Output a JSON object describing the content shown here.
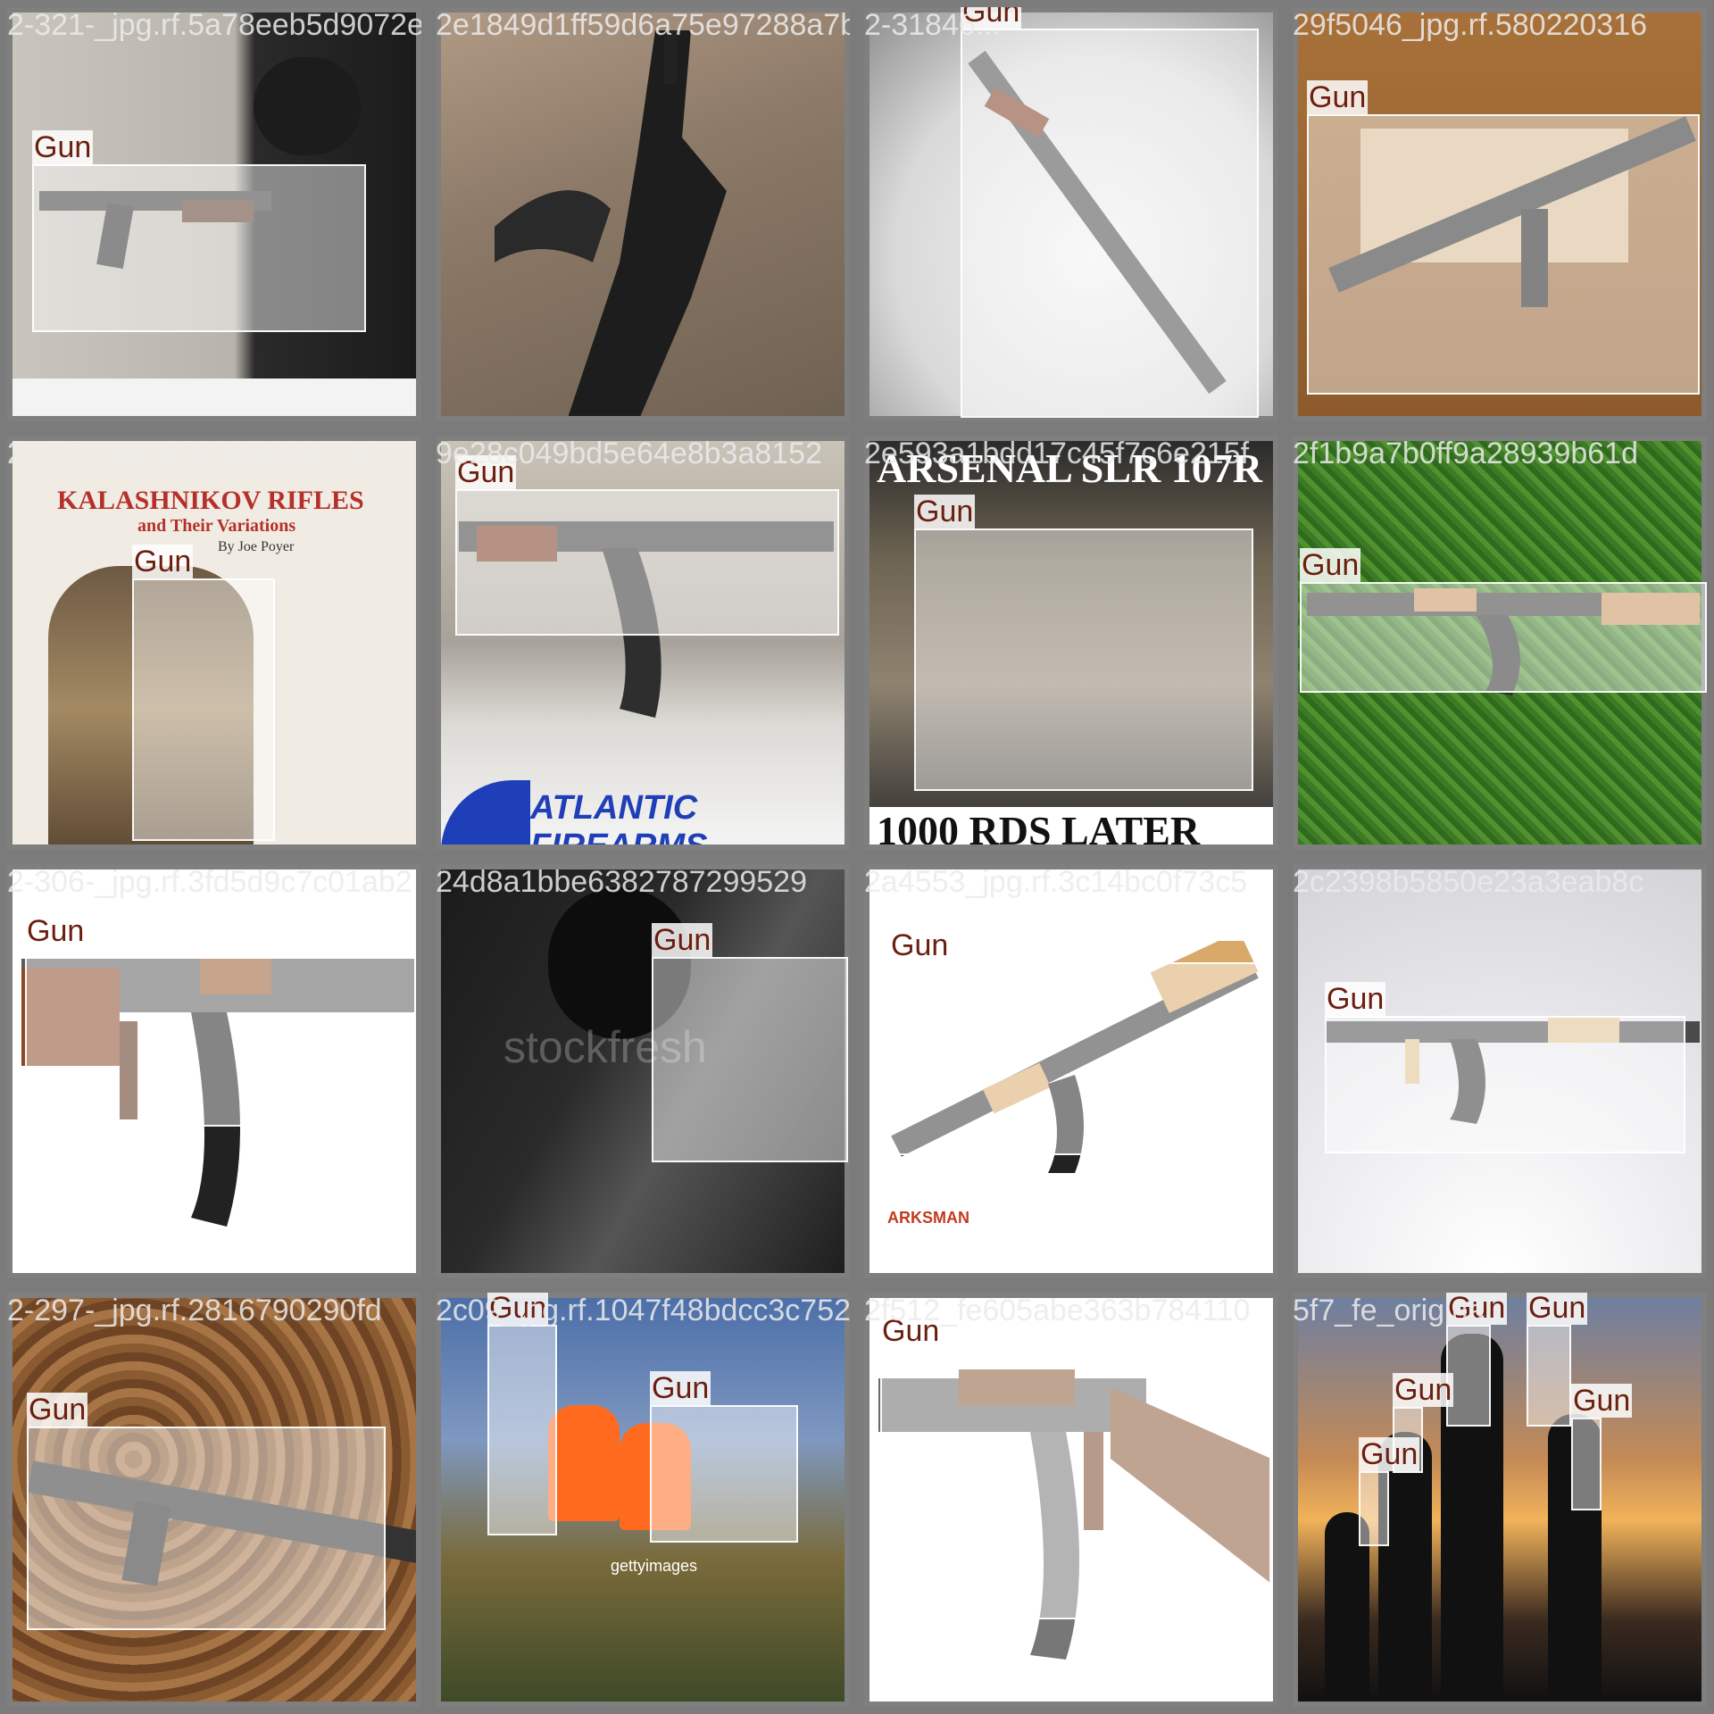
{
  "tiles": [
    {
      "filename": "2-321-_jpg.rf.5a78eeb5d9072e2849",
      "label": "Gun"
    },
    {
      "filename": "2e1849d1ff59d6a75e97288a7b18",
      "label": ""
    },
    {
      "filename": "2-31846...",
      "label": "Gun"
    },
    {
      "filename": "29f5046_jpg.rf.580220316",
      "label": "Gun"
    },
    {
      "filename": "2-316-_jpg.rf.36fe9b44c02d",
      "label": "Gun",
      "cover_title": "KALASHNIKOV RIFLES",
      "cover_subtitle": "and Their Variations",
      "cover_author": "By Joe Poyer"
    },
    {
      "filename": "9e28c049bd5e64e8b3a8152",
      "label": "Gun",
      "logo_text": "ATLANTIC FIREARMS"
    },
    {
      "filename": "2e593a1bdd17c45f7c6e215f",
      "label": "Gun",
      "banner_top": "ARSENAL SLR 107R",
      "banner_bottom": "1000 RDS LATER"
    },
    {
      "filename": "2f1b9a7b0ff9a28939b61d",
      "label": "Gun"
    },
    {
      "filename": "2-306-_jpg.rf.3fd5d9c7c01ab2",
      "label": "Gun"
    },
    {
      "filename": "24d8a1bbe6382787299529",
      "label": "Gun",
      "watermark": "stockfresh"
    },
    {
      "filename": "2a4553_jpg.rf.3c14bc0f73c5",
      "label": "Gun",
      "logo_text": "ARKSMAN"
    },
    {
      "filename": "2c2398b5850e23a3eab8c",
      "label": "Gun"
    },
    {
      "filename": "2-297-_jpg.rf.2816790290fd",
      "label": "Gun"
    },
    {
      "filename": "2c09_jpg.rf.1047f48bdcc3c752",
      "label": "Gun",
      "label2": "Gun",
      "watermark": "gettyimages"
    },
    {
      "filename": "2f512_fe605abe363b784110",
      "label": "Gun"
    },
    {
      "filename": "5f7_fe_original",
      "label": "Gun"
    }
  ]
}
